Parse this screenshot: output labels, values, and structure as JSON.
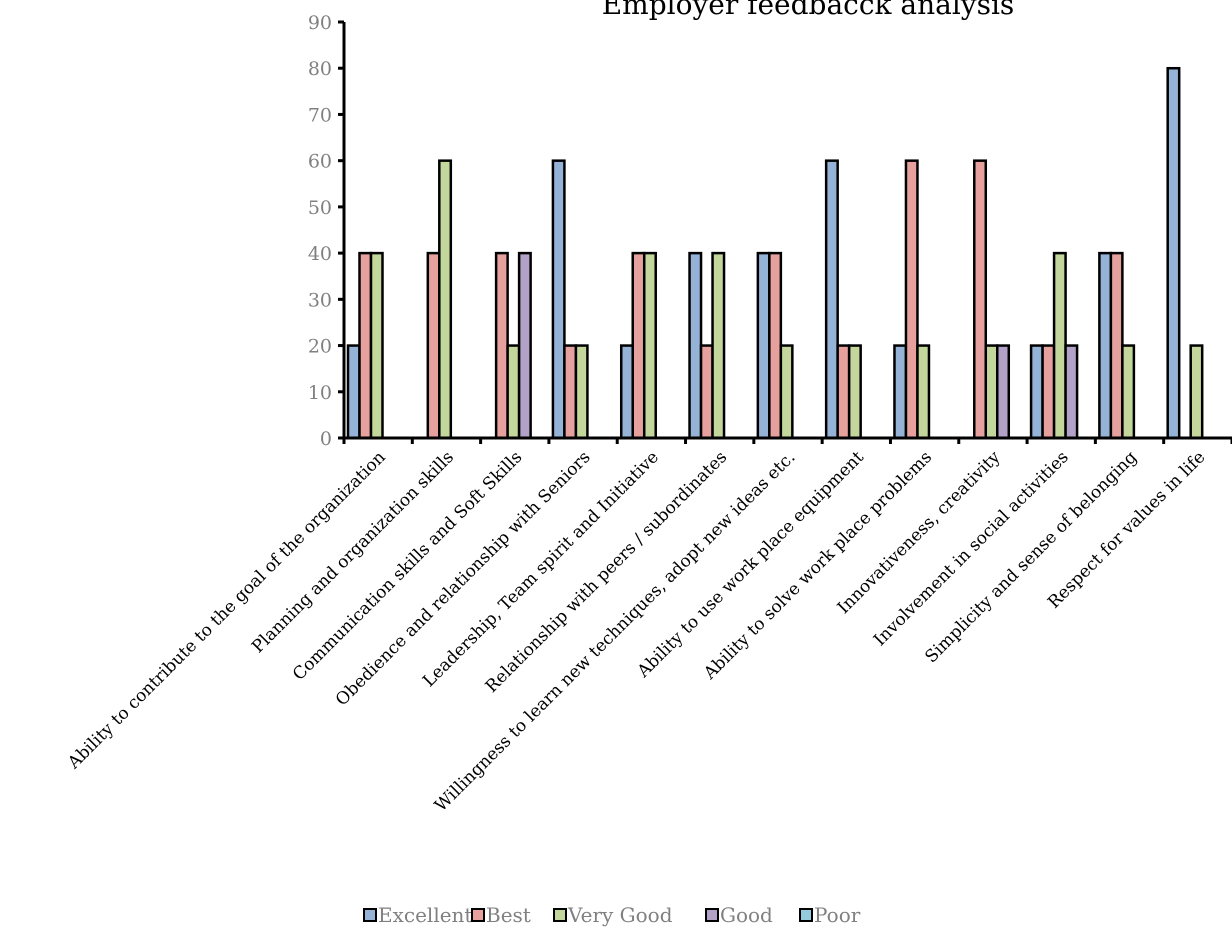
{
  "chart_data": {
    "type": "bar",
    "title": "Employer feedbacck analysis",
    "xlabel": "",
    "ylabel": "",
    "ylim": [
      0,
      90
    ],
    "yticks": [
      0,
      10,
      20,
      30,
      40,
      50,
      60,
      70,
      80,
      90
    ],
    "grid": false,
    "legend_position": "bottom",
    "categories": [
      "Ability to contribute to the goal of the organization",
      "Planning and organization skills",
      "Communication skills and Soft Skills",
      "Obedience and relationship with Seniors",
      "Leadership, Team spirit and Initiative",
      "Relationship with peers / subordinates",
      "Willingness to learn new techniques, adopt new ideas etc.",
      "Ability to use work place equipment",
      "Ability to solve work place problems",
      "Innovativeness, creativity",
      "Involvement in social activities",
      "Simplicity and sense of belonging",
      "Respect for values in life"
    ],
    "series": [
      {
        "name": "Excellent",
        "color": "#95b3d7",
        "values": [
          20,
          0,
          0,
          60,
          20,
          40,
          40,
          60,
          20,
          0,
          20,
          40,
          80
        ]
      },
      {
        "name": "Best",
        "color": "#e6a19e",
        "values": [
          40,
          40,
          40,
          20,
          40,
          20,
          40,
          20,
          60,
          60,
          20,
          40,
          0
        ]
      },
      {
        "name": "Very Good",
        "color": "#c3d69b",
        "values": [
          40,
          60,
          20,
          20,
          40,
          40,
          20,
          20,
          20,
          20,
          40,
          20,
          20
        ]
      },
      {
        "name": "Good",
        "color": "#b3a2c7",
        "values": [
          0,
          0,
          40,
          0,
          0,
          0,
          0,
          0,
          0,
          20,
          20,
          0,
          0
        ]
      },
      {
        "name": "Poor",
        "color": "#93cddd",
        "values": [
          0,
          0,
          0,
          0,
          0,
          0,
          0,
          0,
          0,
          0,
          0,
          0,
          0
        ]
      }
    ]
  }
}
